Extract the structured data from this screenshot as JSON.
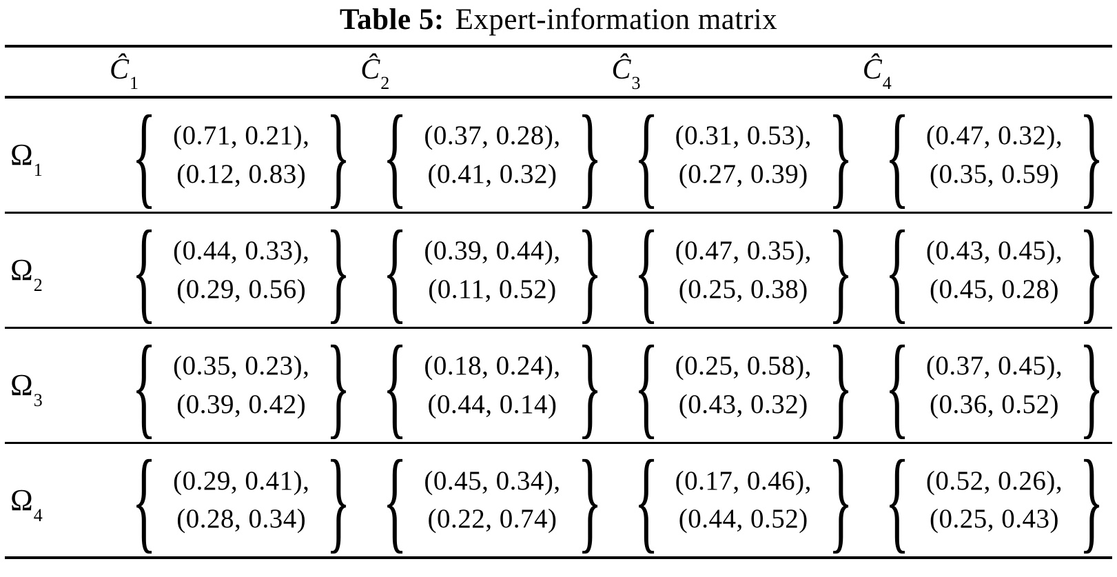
{
  "title": {
    "label": "Table 5:",
    "text": "Expert-information matrix"
  },
  "notation": {
    "open_brace": "{",
    "close_brace": "}"
  },
  "columns": [
    {
      "symbol": "Ĉ",
      "sub": "1"
    },
    {
      "symbol": "Ĉ",
      "sub": "2"
    },
    {
      "symbol": "Ĉ",
      "sub": "3"
    },
    {
      "symbol": "Ĉ",
      "sub": "4"
    }
  ],
  "rows": [
    {
      "header": {
        "symbol": "Ω",
        "sub": "1"
      },
      "cells": [
        [
          "(0.71, 0.21),",
          "(0.12, 0.83)"
        ],
        [
          "(0.37, 0.28),",
          "(0.41, 0.32)"
        ],
        [
          "(0.31, 0.53),",
          "(0.27, 0.39)"
        ],
        [
          "(0.47, 0.32),",
          "(0.35, 0.59)"
        ]
      ]
    },
    {
      "header": {
        "symbol": "Ω",
        "sub": "2"
      },
      "cells": [
        [
          "(0.44, 0.33),",
          "(0.29, 0.56)"
        ],
        [
          "(0.39, 0.44),",
          "(0.11, 0.52)"
        ],
        [
          "(0.47, 0.35),",
          "(0.25, 0.38)"
        ],
        [
          "(0.43, 0.45),",
          "(0.45, 0.28)"
        ]
      ]
    },
    {
      "header": {
        "symbol": "Ω",
        "sub": "3"
      },
      "cells": [
        [
          "(0.35, 0.23),",
          "(0.39, 0.42)"
        ],
        [
          "(0.18, 0.24),",
          "(0.44, 0.14)"
        ],
        [
          "(0.25, 0.58),",
          "(0.43, 0.32)"
        ],
        [
          "(0.37, 0.45),",
          "(0.36, 0.52)"
        ]
      ]
    },
    {
      "header": {
        "symbol": "Ω",
        "sub": "4"
      },
      "cells": [
        [
          "(0.29, 0.41),",
          "(0.28, 0.34)"
        ],
        [
          "(0.45, 0.34),",
          "(0.22, 0.74)"
        ],
        [
          "(0.17, 0.46),",
          "(0.44, 0.52)"
        ],
        [
          "(0.52, 0.26),",
          "(0.25, 0.43)"
        ]
      ]
    }
  ]
}
